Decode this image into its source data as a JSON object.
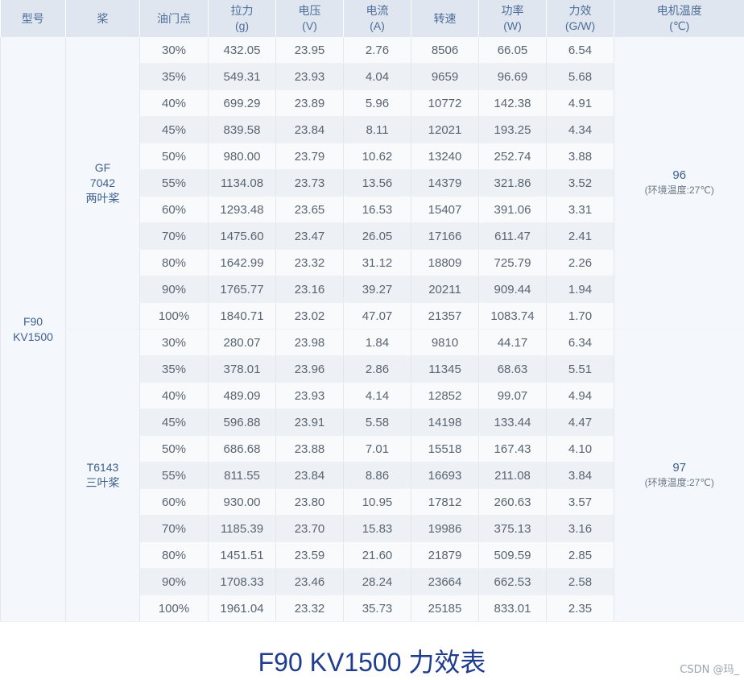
{
  "headers": [
    {
      "line1": "型号",
      "line2": ""
    },
    {
      "line1": "桨",
      "line2": ""
    },
    {
      "line1": "油门点",
      "line2": ""
    },
    {
      "line1": "拉力",
      "line2": "(g)"
    },
    {
      "line1": "电压",
      "line2": "(V)"
    },
    {
      "line1": "电流",
      "line2": "(A)"
    },
    {
      "line1": "转速",
      "line2": ""
    },
    {
      "line1": "功率",
      "line2": "(W)"
    },
    {
      "line1": "力效",
      "line2": "(G/W)"
    },
    {
      "line1": "电机温度",
      "line2": "(℃)"
    }
  ],
  "model": {
    "line1": "F90",
    "line2": "KV1500"
  },
  "groups": [
    {
      "prop": [
        "GF",
        "7042",
        "两叶桨"
      ],
      "motor_temp": "96",
      "temp_note": "(环境温度:27℃)",
      "rows": [
        [
          "30%",
          "432.05",
          "23.95",
          "2.76",
          "8506",
          "66.05",
          "6.54"
        ],
        [
          "35%",
          "549.31",
          "23.93",
          "4.04",
          "9659",
          "96.69",
          "5.68"
        ],
        [
          "40%",
          "699.29",
          "23.89",
          "5.96",
          "10772",
          "142.38",
          "4.91"
        ],
        [
          "45%",
          "839.58",
          "23.84",
          "8.11",
          "12021",
          "193.25",
          "4.34"
        ],
        [
          "50%",
          "980.00",
          "23.79",
          "10.62",
          "13240",
          "252.74",
          "3.88"
        ],
        [
          "55%",
          "1134.08",
          "23.73",
          "13.56",
          "14379",
          "321.86",
          "3.52"
        ],
        [
          "60%",
          "1293.48",
          "23.65",
          "16.53",
          "15407",
          "391.06",
          "3.31"
        ],
        [
          "70%",
          "1475.60",
          "23.47",
          "26.05",
          "17166",
          "611.47",
          "2.41"
        ],
        [
          "80%",
          "1642.99",
          "23.32",
          "31.12",
          "18809",
          "725.79",
          "2.26"
        ],
        [
          "90%",
          "1765.77",
          "23.16",
          "39.27",
          "20211",
          "909.44",
          "1.94"
        ],
        [
          "100%",
          "1840.71",
          "23.02",
          "47.07",
          "21357",
          "1083.74",
          "1.70"
        ]
      ]
    },
    {
      "prop": [
        "T6143",
        "三叶桨"
      ],
      "motor_temp": "97",
      "temp_note": "(环境温度:27℃)",
      "rows": [
        [
          "30%",
          "280.07",
          "23.98",
          "1.84",
          "9810",
          "44.17",
          "6.34"
        ],
        [
          "35%",
          "378.01",
          "23.96",
          "2.86",
          "11345",
          "68.63",
          "5.51"
        ],
        [
          "40%",
          "489.09",
          "23.93",
          "4.14",
          "12852",
          "99.07",
          "4.94"
        ],
        [
          "45%",
          "596.88",
          "23.91",
          "5.58",
          "14198",
          "133.44",
          "4.47"
        ],
        [
          "50%",
          "686.68",
          "23.88",
          "7.01",
          "15518",
          "167.43",
          "4.10"
        ],
        [
          "55%",
          "811.55",
          "23.84",
          "8.86",
          "16693",
          "211.08",
          "3.84"
        ],
        [
          "60%",
          "930.00",
          "23.80",
          "10.95",
          "17812",
          "260.63",
          "3.57"
        ],
        [
          "70%",
          "1185.39",
          "23.70",
          "15.83",
          "19986",
          "375.13",
          "3.16"
        ],
        [
          "80%",
          "1451.51",
          "23.59",
          "21.60",
          "21879",
          "509.59",
          "2.85"
        ],
        [
          "90%",
          "1708.33",
          "23.46",
          "28.24",
          "23664",
          "662.53",
          "2.58"
        ],
        [
          "100%",
          "1961.04",
          "23.32",
          "35.73",
          "25185",
          "833.01",
          "2.35"
        ]
      ]
    }
  ],
  "caption": {
    "latin": "F90 KV1500 ",
    "zh": "力效表"
  },
  "watermark": "CSDN @玛_"
}
